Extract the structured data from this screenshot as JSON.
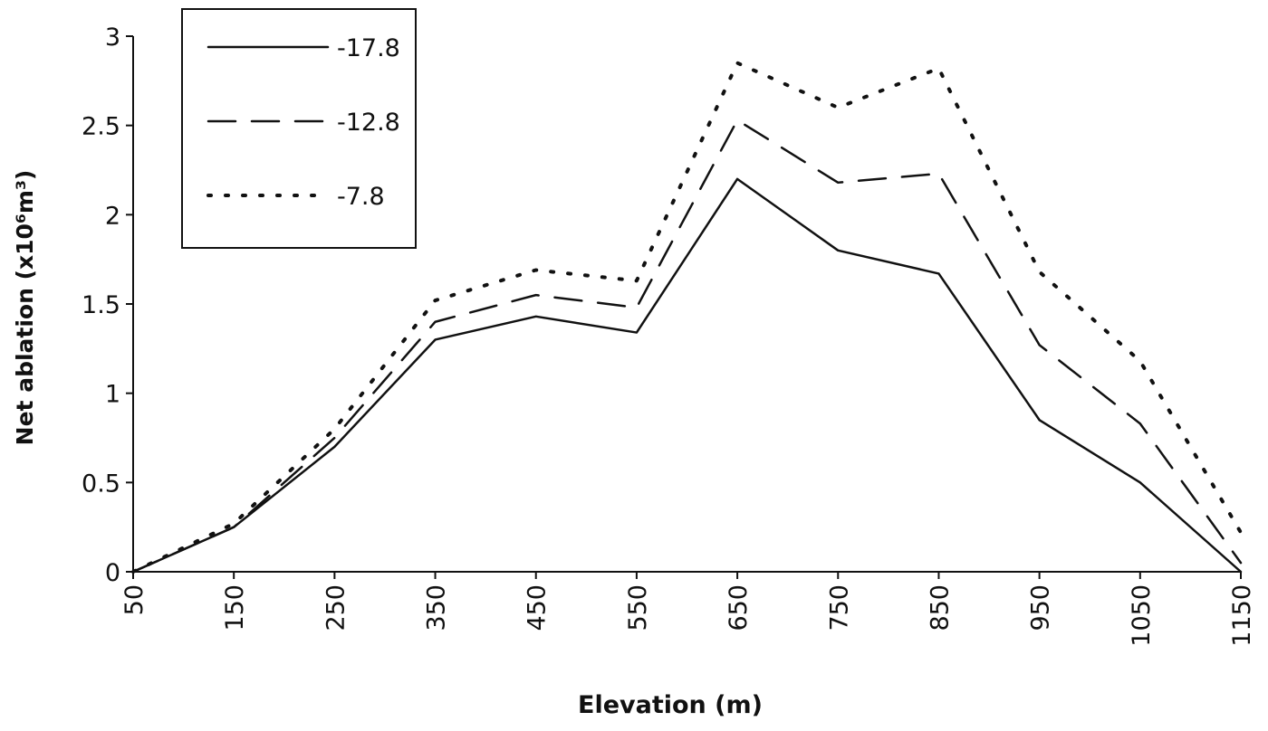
{
  "chart_data": {
    "type": "line",
    "title": "",
    "xlabel": "Elevation (m)",
    "ylabel": "Net ablation (x10⁶m³)",
    "x": [
      50,
      150,
      250,
      350,
      450,
      550,
      650,
      750,
      850,
      950,
      1050,
      1150
    ],
    "x_tick_labels": [
      "50",
      "150",
      "250",
      "350",
      "450",
      "550",
      "650",
      "750",
      "850",
      "950",
      "1050",
      "1150"
    ],
    "y_tick_labels": [
      "0",
      "0.5",
      "1",
      "1.5",
      "2",
      "2.5",
      "3"
    ],
    "y_ticks": [
      0,
      0.5,
      1,
      1.5,
      2,
      2.5,
      3
    ],
    "ylim": [
      0,
      3
    ],
    "xlim": [
      50,
      1150
    ],
    "grid": false,
    "legend_placement": "top-left",
    "series": [
      {
        "name": "-17.8",
        "style": "solid",
        "values": [
          0,
          0.25,
          0.7,
          1.3,
          1.43,
          1.34,
          2.2,
          1.8,
          1.67,
          0.85,
          0.5,
          0
        ]
      },
      {
        "name": "-12.8",
        "style": "dashed",
        "values": [
          0,
          0.25,
          0.75,
          1.4,
          1.55,
          1.48,
          2.53,
          2.18,
          2.23,
          1.27,
          0.83,
          0.05
        ]
      },
      {
        "name": "-7.8",
        "style": "dotted",
        "values": [
          0,
          0.27,
          0.8,
          1.52,
          1.69,
          1.63,
          2.85,
          2.6,
          2.82,
          1.68,
          1.18,
          0.22
        ]
      }
    ],
    "line_color": "#111111"
  }
}
